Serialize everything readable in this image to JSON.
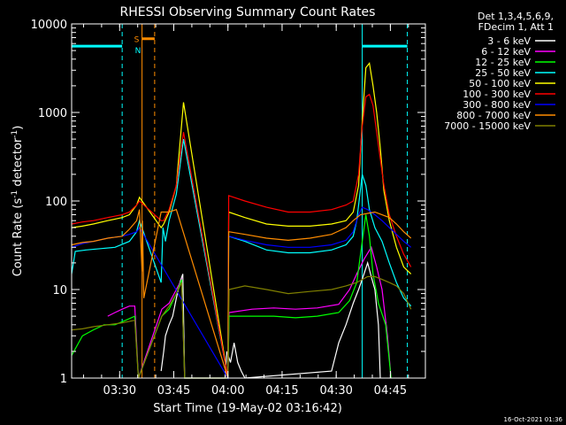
{
  "chart_data": {
    "type": "line",
    "title": "RHESSI Observing Summary Count Rates",
    "xlabel": "Start Time (19-May-02 03:16:42)",
    "ylabel_main": "Count Rate (s",
    "ylabel_sup1": "-1",
    "ylabel_mid": " detector",
    "ylabel_sup2": "-1",
    "ylabel_end": ")",
    "footer": "16-Oct-2021 01:36",
    "x_unit": "minutes after 03:16:42",
    "xlim": [
      0,
      98
    ],
    "ylim": [
      1,
      10000
    ],
    "yscale": "log",
    "x_ticks": [
      {
        "label": "03:30",
        "min": 13.3
      },
      {
        "label": "03:45",
        "min": 28.3
      },
      {
        "label": "04:00",
        "min": 43.3
      },
      {
        "label": "04:15",
        "min": 58.3
      },
      {
        "label": "04:30",
        "min": 73.3
      },
      {
        "label": "04:45",
        "min": 88.3
      }
    ],
    "y_ticks": [
      {
        "label": "1",
        "value": 1
      },
      {
        "label": "10",
        "value": 10
      },
      {
        "label": "100",
        "value": 100
      },
      {
        "label": "1000",
        "value": 1000
      },
      {
        "label": "10000",
        "value": 10000
      }
    ],
    "legend_header": [
      "Det 1,3,4,5,6,9,",
      "FDecim 1, Att 1"
    ],
    "legend_placement": "right",
    "flags": {
      "saa_label": "S",
      "night_label": "N",
      "saa_color": "#ff8c00",
      "night_color": "#00ffff",
      "night_bar_level": 5600,
      "saa_bar_level": 6800,
      "night_segments": [
        [
          0,
          14
        ],
        [
          80.5,
          93
        ]
      ],
      "saa_segment": [
        19.5,
        23
      ]
    },
    "vlines": [
      {
        "min": 0,
        "color": "#00ffff",
        "style": "solid"
      },
      {
        "min": 14,
        "color": "#00ffff",
        "style": "dash"
      },
      {
        "min": 19.5,
        "color": "#ff8c00",
        "style": "solid"
      },
      {
        "min": 23,
        "color": "#ff8c00",
        "style": "dash"
      },
      {
        "min": 80.5,
        "color": "#00ffff",
        "style": "solid"
      },
      {
        "min": 93,
        "color": "#00ffff",
        "style": "dash"
      }
    ],
    "series": [
      {
        "name": "3 - 6 keV",
        "color": "#ffffff",
        "values": [
          [
            24.8,
            1.2
          ],
          [
            25.5,
            2
          ],
          [
            26,
            3
          ],
          [
            27,
            4
          ],
          [
            28,
            5
          ],
          [
            29,
            8
          ],
          [
            30,
            12
          ],
          [
            30.8,
            15
          ],
          [
            31.3,
            1
          ],
          [
            42.5,
            1
          ],
          [
            43,
            2
          ],
          [
            44,
            1.5
          ],
          [
            45,
            2.5
          ],
          [
            46,
            1.5
          ],
          [
            47,
            1.2
          ],
          [
            48,
            1
          ],
          [
            72,
            1.2
          ],
          [
            74,
            2.5
          ],
          [
            76,
            4
          ],
          [
            78,
            7
          ],
          [
            79.5,
            10
          ],
          [
            81,
            15
          ],
          [
            82,
            20
          ],
          [
            83,
            14
          ],
          [
            84,
            10
          ],
          [
            85,
            4
          ],
          [
            85.5,
            1
          ]
        ]
      },
      {
        "name": "6 - 12 keV",
        "color": "#ff00ff",
        "values": [
          [
            10,
            5
          ],
          [
            12,
            5.5
          ],
          [
            14,
            6
          ],
          [
            16,
            6.5
          ],
          [
            17.5,
            6.5
          ],
          [
            18.5,
            1
          ],
          [
            25,
            6
          ],
          [
            27,
            7
          ],
          [
            29,
            10
          ],
          [
            30.5,
            13
          ],
          [
            31.3,
            1
          ],
          [
            43.3,
            1
          ],
          [
            43.6,
            5.5
          ],
          [
            50,
            6
          ],
          [
            56,
            6.2
          ],
          [
            62,
            6
          ],
          [
            68,
            6.2
          ],
          [
            74,
            6.8
          ],
          [
            77,
            10
          ],
          [
            79,
            15
          ],
          [
            81,
            22
          ],
          [
            83,
            30
          ],
          [
            84.5,
            18
          ],
          [
            86,
            10
          ],
          [
            87.5,
            3
          ],
          [
            88.5,
            1
          ]
        ]
      },
      {
        "name": "12 - 25 keV",
        "color": "#00ff00",
        "values": [
          [
            0,
            1.8
          ],
          [
            3,
            3
          ],
          [
            6,
            3.5
          ],
          [
            9,
            4
          ],
          [
            12,
            4
          ],
          [
            15,
            4.5
          ],
          [
            17.5,
            5
          ],
          [
            18.5,
            1
          ],
          [
            25,
            5
          ],
          [
            27,
            6
          ],
          [
            29,
            9
          ],
          [
            30.5,
            13
          ],
          [
            31.3,
            1
          ],
          [
            43.3,
            1
          ],
          [
            43.6,
            5
          ],
          [
            50,
            5
          ],
          [
            56,
            5
          ],
          [
            62,
            4.8
          ],
          [
            68,
            5
          ],
          [
            74,
            5.5
          ],
          [
            77,
            7.5
          ],
          [
            79,
            12
          ],
          [
            80.5,
            35
          ],
          [
            81.5,
            70
          ],
          [
            82.5,
            40
          ],
          [
            83.5,
            15
          ],
          [
            85,
            7
          ],
          [
            87,
            4
          ],
          [
            88.5,
            1
          ]
        ]
      },
      {
        "name": "25 - 50 keV",
        "color": "#00ffff",
        "values": [
          [
            0,
            15
          ],
          [
            1,
            27
          ],
          [
            4,
            28
          ],
          [
            8,
            29
          ],
          [
            12,
            30
          ],
          [
            16,
            35
          ],
          [
            18,
            45
          ],
          [
            18.8,
            60
          ],
          [
            24.8,
            12
          ],
          [
            25.3,
            50
          ],
          [
            26,
            35
          ],
          [
            27,
            60
          ],
          [
            29,
            120
          ],
          [
            31,
            500
          ],
          [
            43.3,
            1
          ],
          [
            43.5,
            40
          ],
          [
            48,
            35
          ],
          [
            54,
            28
          ],
          [
            60,
            26
          ],
          [
            66,
            26
          ],
          [
            72,
            28
          ],
          [
            76,
            32
          ],
          [
            78,
            40
          ],
          [
            79,
            60
          ],
          [
            80.5,
            200
          ],
          [
            81.5,
            150
          ],
          [
            82.5,
            80
          ],
          [
            84,
            50
          ],
          [
            86,
            35
          ],
          [
            88,
            20
          ],
          [
            90,
            12
          ],
          [
            92,
            8
          ],
          [
            94,
            6.5
          ]
        ]
      },
      {
        "name": "50 - 100 keV",
        "color": "#ffff00",
        "values": [
          [
            0,
            50
          ],
          [
            3,
            52
          ],
          [
            6,
            55
          ],
          [
            10,
            60
          ],
          [
            14,
            65
          ],
          [
            16,
            70
          ],
          [
            18,
            90
          ],
          [
            18.8,
            110
          ],
          [
            24.8,
            50
          ],
          [
            25.5,
            55
          ],
          [
            27,
            75
          ],
          [
            29,
            150
          ],
          [
            31,
            1300
          ],
          [
            43.3,
            1
          ],
          [
            43.5,
            75
          ],
          [
            48,
            65
          ],
          [
            54,
            55
          ],
          [
            60,
            52
          ],
          [
            66,
            52
          ],
          [
            72,
            55
          ],
          [
            76,
            60
          ],
          [
            78,
            75
          ],
          [
            79.5,
            150
          ],
          [
            80.5,
            800
          ],
          [
            81.5,
            3200
          ],
          [
            82.5,
            3600
          ],
          [
            83.5,
            2000
          ],
          [
            84.5,
            1000
          ],
          [
            85.5,
            400
          ],
          [
            86.5,
            130
          ],
          [
            88,
            60
          ],
          [
            90,
            30
          ],
          [
            92,
            18
          ],
          [
            94,
            15
          ]
        ]
      },
      {
        "name": "100 - 300 keV",
        "color": "#ff0000",
        "values": [
          [
            0,
            55
          ],
          [
            3,
            58
          ],
          [
            6,
            60
          ],
          [
            10,
            65
          ],
          [
            14,
            70
          ],
          [
            16,
            75
          ],
          [
            18,
            90
          ],
          [
            18.8,
            100
          ],
          [
            24.8,
            60
          ],
          [
            25.5,
            60
          ],
          [
            27,
            80
          ],
          [
            29,
            150
          ],
          [
            31,
            600
          ],
          [
            43.3,
            1
          ],
          [
            43.5,
            115
          ],
          [
            48,
            100
          ],
          [
            54,
            85
          ],
          [
            60,
            75
          ],
          [
            66,
            75
          ],
          [
            72,
            80
          ],
          [
            76,
            90
          ],
          [
            78,
            100
          ],
          [
            79.5,
            200
          ],
          [
            80.5,
            700
          ],
          [
            81.5,
            1500
          ],
          [
            82.5,
            1600
          ],
          [
            83.5,
            1200
          ],
          [
            84.5,
            600
          ],
          [
            85.5,
            300
          ],
          [
            86.5,
            150
          ],
          [
            88,
            70
          ],
          [
            90,
            40
          ],
          [
            92,
            25
          ],
          [
            94,
            18
          ]
        ]
      },
      {
        "name": "300 - 800 keV",
        "color": "#0000ff",
        "values": [
          [
            0,
            30
          ],
          [
            3,
            33
          ],
          [
            6,
            35
          ],
          [
            10,
            38
          ],
          [
            14,
            40
          ],
          [
            16,
            42
          ],
          [
            18,
            45
          ],
          [
            18.8,
            50
          ],
          [
            43.3,
            1
          ],
          [
            43.5,
            40
          ],
          [
            48,
            36
          ],
          [
            54,
            32
          ],
          [
            60,
            30
          ],
          [
            66,
            30
          ],
          [
            72,
            32
          ],
          [
            76,
            36
          ],
          [
            78,
            45
          ],
          [
            79.5,
            70
          ],
          [
            80.5,
            85
          ],
          [
            82,
            80
          ],
          [
            84,
            70
          ],
          [
            86,
            60
          ],
          [
            88,
            50
          ],
          [
            90,
            42
          ],
          [
            92,
            35
          ],
          [
            94,
            30
          ]
        ]
      },
      {
        "name": "800 - 7000 keV",
        "color": "#ff8c00",
        "values": [
          [
            0,
            32
          ],
          [
            3,
            34
          ],
          [
            6,
            35
          ],
          [
            10,
            38
          ],
          [
            14,
            40
          ],
          [
            16,
            48
          ],
          [
            18,
            60
          ],
          [
            18.8,
            80
          ],
          [
            19.5,
            16
          ],
          [
            19.6,
            60
          ],
          [
            20,
            8
          ],
          [
            24.8,
            75
          ],
          [
            27,
            75
          ],
          [
            29,
            80
          ],
          [
            43.3,
            1
          ],
          [
            43.5,
            45
          ],
          [
            48,
            42
          ],
          [
            54,
            38
          ],
          [
            60,
            36
          ],
          [
            66,
            38
          ],
          [
            72,
            42
          ],
          [
            76,
            50
          ],
          [
            78,
            60
          ],
          [
            80,
            70
          ],
          [
            84,
            75
          ],
          [
            88,
            65
          ],
          [
            90,
            55
          ],
          [
            92,
            45
          ],
          [
            94,
            38
          ]
        ]
      },
      {
        "name": "7000 - 15000 keV",
        "color": "#808000",
        "values": [
          [
            0,
            3.5
          ],
          [
            3,
            3.6
          ],
          [
            6,
            3.8
          ],
          [
            10,
            4
          ],
          [
            14,
            4.2
          ],
          [
            17.5,
            4.5
          ],
          [
            18.5,
            1
          ],
          [
            25,
            5
          ],
          [
            27,
            6.5
          ],
          [
            29,
            9
          ],
          [
            30.5,
            12
          ],
          [
            31.3,
            1
          ],
          [
            43.3,
            1
          ],
          [
            43.6,
            10
          ],
          [
            48,
            11
          ],
          [
            54,
            10
          ],
          [
            60,
            9
          ],
          [
            66,
            9.5
          ],
          [
            72,
            10
          ],
          [
            76,
            11
          ],
          [
            79,
            12
          ],
          [
            82,
            14
          ],
          [
            84,
            14
          ],
          [
            86,
            13
          ],
          [
            88,
            12
          ],
          [
            90,
            11
          ],
          [
            92,
            9
          ],
          [
            94,
            6
          ]
        ]
      }
    ]
  }
}
